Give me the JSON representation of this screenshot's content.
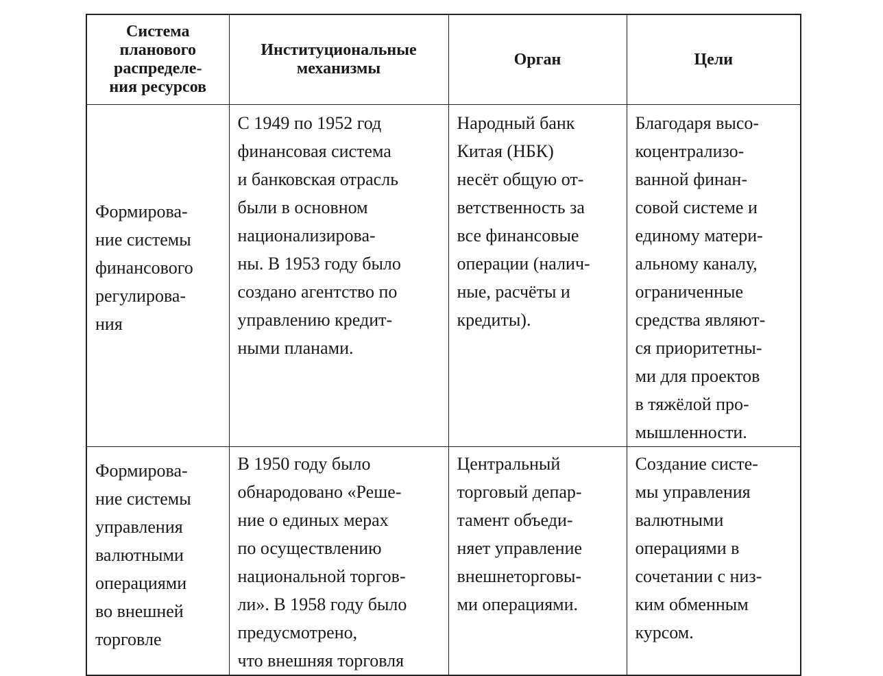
{
  "table": {
    "headers": [
      "Система\nпланового\nраспределе-\nния ресурсов",
      "Институциональные\nмеханизмы",
      "Орган",
      "Цели"
    ],
    "rows": [
      {
        "system": "Формирова-\nние системы\nфинансового\nрегулирова-\nния",
        "mechanisms": "С 1949 по 1952 год\nфинансовая система\nи банковская отрасль\nбыли в основном\nнационализирова-\nны. В 1953 году было\nсоздано агентство по\nуправлению кредит-\nными планами.",
        "body": "Народный банк\nКитая (НБК)\nнесёт общую от-\nветственность за\nвсе финансовые\nоперации (налич-\nные, расчёты и\nкредиты).",
        "goals": "Благодаря высо-\nкоцентрализо-\nванной финан-\nсовой системе и\nединому матери-\nальному каналу,\nограниченные\nсредства являют-\nся приоритетны-\nми для проектов\nв тяжёлой про-\nмышленности."
      },
      {
        "system": "Формирова-\nние системы\nуправления\nвалютными\nоперациями\nво внешней\nторговле",
        "mechanisms": "В 1950 году было\nобнародовано «Реше-\nние о единых мерах\nпо осуществлению\nнациональной торгов-\nли». В 1958 году было\nпредусмотрено,\nчто внешняя торговля",
        "body": "Центральный\nторговый депар-\nтамент объеди-\nняет управление\nвнешнеторговы-\nми операциями.",
        "goals": "Создание систе-\nмы управления\nвалютными\nоперациями в\nсочетании с низ-\nким обменным\nкурсом."
      }
    ]
  }
}
